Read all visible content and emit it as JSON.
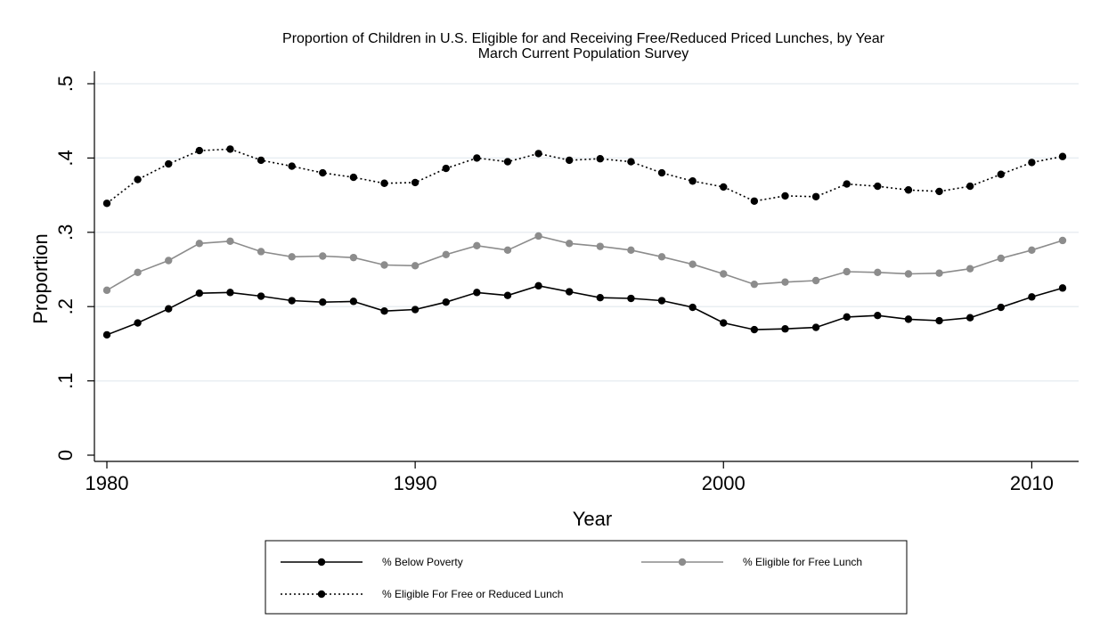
{
  "chart_data": {
    "type": "line",
    "title": "Proportion of Children in U.S. Eligible for and Receiving Free/Reduced Priced Lunches, by Year",
    "subtitle": "March Current Population Survey",
    "xlabel": "Year",
    "ylabel": "Proportion",
    "xlim": [
      1980,
      2011
    ],
    "ylim": [
      0,
      0.5
    ],
    "x_ticks": [
      1980,
      1990,
      2000,
      2010
    ],
    "x_tick_labels": [
      "1980",
      "1990",
      "2000",
      "2010"
    ],
    "y_ticks": [
      0,
      0.1,
      0.2,
      0.3,
      0.4,
      0.5
    ],
    "y_tick_labels": [
      "0",
      ".1",
      ".2",
      ".3",
      ".4",
      ".5"
    ],
    "grid": true,
    "legend_position": "bottom",
    "x": [
      1980,
      1981,
      1982,
      1983,
      1984,
      1985,
      1986,
      1987,
      1988,
      1989,
      1990,
      1991,
      1992,
      1993,
      1994,
      1995,
      1996,
      1997,
      1998,
      1999,
      2000,
      2001,
      2002,
      2003,
      2004,
      2005,
      2006,
      2007,
      2008,
      2009,
      2010,
      2011
    ],
    "series": [
      {
        "name": "% Below Poverty",
        "color": "#000000",
        "style": "solid",
        "values": [
          0.162,
          0.178,
          0.197,
          0.218,
          0.219,
          0.214,
          0.208,
          0.206,
          0.207,
          0.194,
          0.196,
          0.206,
          0.219,
          0.215,
          0.228,
          0.22,
          0.212,
          0.211,
          0.208,
          0.199,
          0.178,
          0.169,
          0.17,
          0.172,
          0.186,
          0.188,
          0.183,
          0.181,
          0.185,
          0.199,
          0.213,
          0.225
        ]
      },
      {
        "name": "% Eligible for Free Lunch",
        "color": "#8c8c8c",
        "style": "solid",
        "values": [
          0.222,
          0.246,
          0.262,
          0.285,
          0.288,
          0.274,
          0.267,
          0.268,
          0.266,
          0.256,
          0.255,
          0.27,
          0.282,
          0.276,
          0.295,
          0.285,
          0.281,
          0.276,
          0.267,
          0.257,
          0.244,
          0.23,
          0.233,
          0.235,
          0.247,
          0.246,
          0.244,
          0.245,
          0.251,
          0.265,
          0.276,
          0.289
        ]
      },
      {
        "name": "% Eligible For Free or Reduced Lunch",
        "color": "#000000",
        "style": "dotted",
        "values": [
          0.339,
          0.371,
          0.392,
          0.41,
          0.412,
          0.397,
          0.389,
          0.38,
          0.374,
          0.366,
          0.367,
          0.386,
          0.4,
          0.395,
          0.406,
          0.397,
          0.399,
          0.395,
          0.38,
          0.369,
          0.361,
          0.342,
          0.349,
          0.348,
          0.365,
          0.362,
          0.357,
          0.355,
          0.362,
          0.378,
          0.394,
          0.402
        ]
      }
    ]
  }
}
